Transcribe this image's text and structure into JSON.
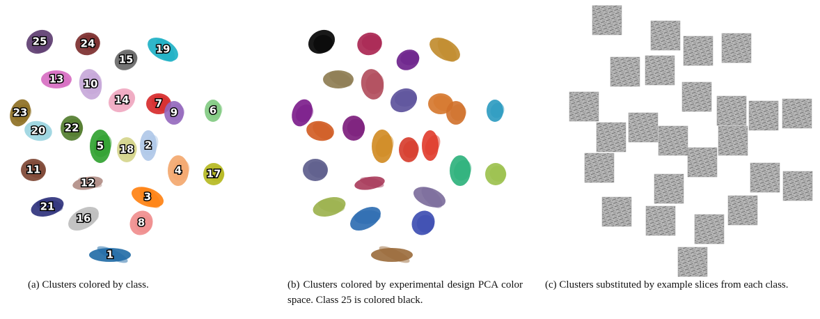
{
  "panel_a": {
    "caption": "(a) Clusters colored by class.",
    "labels": [
      "25",
      "24",
      "15",
      "19",
      "13",
      "10",
      "14",
      "7",
      "9",
      "6",
      "23",
      "20",
      "22",
      "5",
      "18",
      "2",
      "4",
      "17",
      "11",
      "12",
      "3",
      "21",
      "16",
      "8",
      "1"
    ]
  },
  "panel_b": {
    "caption": "(b) Clusters colored by experimental design PCA color space. Class 25 is colored black."
  },
  "panel_c": {
    "caption": "(c) Clusters substituted by example slices from each class."
  }
}
